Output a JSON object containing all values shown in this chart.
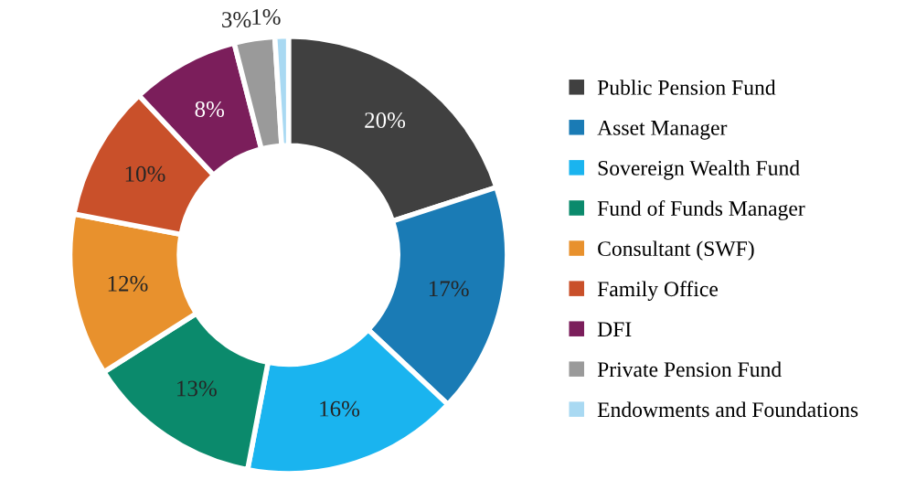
{
  "chart_data": {
    "type": "donut",
    "categories": [
      "Public Pension Fund",
      "Asset Manager",
      "Sovereign Wealth Fund",
      "Fund of Funds Manager",
      "Consultant (SWF)",
      "Family Office",
      "DFI",
      "Private Pension Fund",
      "Endowments and Foundations"
    ],
    "values": [
      20,
      17,
      16,
      13,
      12,
      10,
      8,
      3,
      1
    ],
    "value_labels": [
      "20%",
      "17%",
      "16%",
      "13%",
      "12%",
      "10%",
      "8%",
      "3%",
      "1%"
    ],
    "colors": [
      "#404040",
      "#1a7bb5",
      "#1ab4ef",
      "#0b8a6c",
      "#e8912d",
      "#c9502a",
      "#7b1e5b",
      "#9a9a9a",
      "#a9d9f2"
    ],
    "legend": "right"
  }
}
